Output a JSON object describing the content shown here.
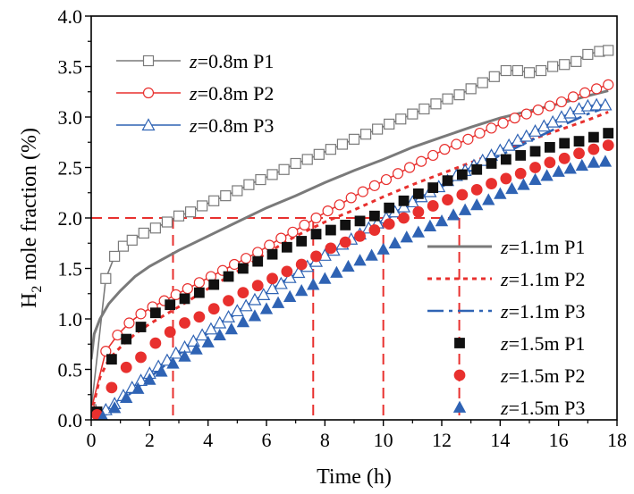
{
  "chart_data": {
    "type": "line",
    "title": "",
    "xlabel": "Time (h)",
    "ylabel_parts": [
      "H",
      "2",
      " mole fraction (%)"
    ],
    "xlim": [
      0,
      18
    ],
    "ylim": [
      0,
      4.0
    ],
    "xticks": [
      0,
      2,
      4,
      6,
      8,
      10,
      12,
      14,
      16,
      18
    ],
    "yticks": [
      0.0,
      0.5,
      1.0,
      1.5,
      2.0,
      2.5,
      3.0,
      3.5,
      4.0
    ],
    "xtick_labels": [
      "0",
      "2",
      "4",
      "6",
      "8",
      "10",
      "12",
      "14",
      "16",
      "18"
    ],
    "ytick_labels": [
      "0.0",
      "0.5",
      "1.0",
      "1.5",
      "2.0",
      "2.5",
      "3.0",
      "3.5",
      "4.0"
    ],
    "reference_lines": {
      "horizontal_y": 2.0,
      "vertical_x": [
        2.8,
        7.6,
        10.0,
        12.6
      ],
      "color": "#e8302e"
    },
    "series": [
      {
        "name": "z=0.8m P1",
        "legend_var": "z",
        "legend_rest": "=0.8m P1",
        "color": "#7a7a7a",
        "style": "line+open-square",
        "x": [
          0,
          0.5,
          0.8,
          1.1,
          1.4,
          1.8,
          2.2,
          2.6,
          3.0,
          3.4,
          3.8,
          4.2,
          4.6,
          5.0,
          5.4,
          5.8,
          6.2,
          6.6,
          7.0,
          7.4,
          7.8,
          8.2,
          8.6,
          9.0,
          9.4,
          9.8,
          10.2,
          10.6,
          11.0,
          11.4,
          11.8,
          12.2,
          12.6,
          13.0,
          13.4,
          13.8,
          14.2,
          14.6,
          15.0,
          15.4,
          15.8,
          16.2,
          16.6,
          17.0,
          17.4,
          17.7
        ],
        "y": [
          0.1,
          1.4,
          1.62,
          1.72,
          1.78,
          1.85,
          1.9,
          1.96,
          2.02,
          2.06,
          2.12,
          2.17,
          2.22,
          2.27,
          2.33,
          2.38,
          2.43,
          2.48,
          2.54,
          2.58,
          2.63,
          2.68,
          2.73,
          2.78,
          2.83,
          2.88,
          2.93,
          2.98,
          3.03,
          3.08,
          3.13,
          3.18,
          3.22,
          3.28,
          3.34,
          3.4,
          3.46,
          3.46,
          3.44,
          3.46,
          3.5,
          3.52,
          3.55,
          3.62,
          3.65,
          3.66
        ]
      },
      {
        "name": "z=0.8m P2",
        "legend_var": "z",
        "legend_rest": "=0.8m P2",
        "color": "#e8302e",
        "style": "line+open-circle",
        "x": [
          0,
          0.5,
          0.9,
          1.3,
          1.7,
          2.1,
          2.5,
          2.9,
          3.3,
          3.7,
          4.1,
          4.5,
          4.9,
          5.3,
          5.7,
          6.1,
          6.5,
          6.9,
          7.3,
          7.7,
          8.1,
          8.5,
          8.9,
          9.3,
          9.7,
          10.1,
          10.5,
          10.9,
          11.3,
          11.7,
          12.1,
          12.5,
          12.9,
          13.3,
          13.7,
          14.1,
          14.5,
          14.9,
          15.3,
          15.7,
          16.1,
          16.5,
          16.9,
          17.3,
          17.7
        ],
        "y": [
          0.1,
          0.68,
          0.84,
          0.96,
          1.05,
          1.12,
          1.18,
          1.24,
          1.3,
          1.36,
          1.42,
          1.48,
          1.54,
          1.6,
          1.66,
          1.73,
          1.8,
          1.86,
          1.93,
          2.0,
          2.07,
          2.13,
          2.2,
          2.26,
          2.32,
          2.38,
          2.44,
          2.5,
          2.56,
          2.62,
          2.68,
          2.73,
          2.78,
          2.84,
          2.89,
          2.94,
          2.99,
          3.03,
          3.07,
          3.11,
          3.15,
          3.2,
          3.24,
          3.28,
          3.32
        ]
      },
      {
        "name": "z=0.8m P3",
        "legend_var": "z",
        "legend_rest": "=0.8m P3",
        "color": "#2f63b4",
        "style": "line+open-triangle",
        "x": [
          0.5,
          0.8,
          1.1,
          1.4,
          1.7,
          2.0,
          2.3,
          2.6,
          2.9,
          3.2,
          3.5,
          3.8,
          4.1,
          4.4,
          4.7,
          5.0,
          5.3,
          5.6,
          5.9,
          6.2,
          6.5,
          6.8,
          7.1,
          7.4,
          7.7,
          8.0,
          8.3,
          8.6,
          8.9,
          9.2,
          9.5,
          9.8,
          10.1,
          10.4,
          10.7,
          11.0,
          11.3,
          11.6,
          11.9,
          12.2,
          12.5,
          12.8,
          13.1,
          13.4,
          13.7,
          14.0,
          14.3,
          14.6,
          14.9,
          15.2,
          15.5,
          15.8,
          16.1,
          16.4,
          16.7,
          17.0,
          17.3,
          17.6
        ],
        "y": [
          0.1,
          0.16,
          0.24,
          0.32,
          0.39,
          0.46,
          0.53,
          0.59,
          0.66,
          0.72,
          0.78,
          0.84,
          0.9,
          0.96,
          1.02,
          1.08,
          1.13,
          1.19,
          1.24,
          1.3,
          1.35,
          1.41,
          1.46,
          1.52,
          1.57,
          1.63,
          1.68,
          1.74,
          1.79,
          1.84,
          1.9,
          1.95,
          2.0,
          2.06,
          2.11,
          2.16,
          2.21,
          2.26,
          2.31,
          2.37,
          2.42,
          2.47,
          2.52,
          2.57,
          2.62,
          2.67,
          2.72,
          2.77,
          2.81,
          2.86,
          2.91,
          2.95,
          3.0,
          3.04,
          3.08,
          3.11,
          3.12,
          3.12
        ]
      },
      {
        "name": "z=1.1m P1",
        "legend_var": "z",
        "legend_rest": "=1.1m P1",
        "color": "#7a7a7a",
        "style": "solid",
        "x": [
          0,
          0.1,
          0.3,
          0.6,
          1.0,
          1.5,
          2.0,
          3.0,
          4.0,
          5.0,
          6.0,
          7.0,
          8.0,
          9.0,
          10.0,
          11.0,
          12.0,
          13.0,
          14.0,
          15.0,
          16.0,
          17.0,
          17.7
        ],
        "y": [
          0.6,
          0.85,
          1.0,
          1.15,
          1.28,
          1.42,
          1.52,
          1.68,
          1.82,
          1.96,
          2.1,
          2.22,
          2.35,
          2.47,
          2.58,
          2.7,
          2.8,
          2.9,
          2.99,
          3.06,
          3.13,
          3.21,
          3.26
        ]
      },
      {
        "name": "z=1.1m P2",
        "legend_var": "z",
        "legend_rest": "=1.1m P2",
        "color": "#e8302e",
        "style": "dotted",
        "x": [
          0,
          0.3,
          0.6,
          1.0,
          1.5,
          2.0,
          3.0,
          4.0,
          5.0,
          6.0,
          7.0,
          8.0,
          9.0,
          10.0,
          11.0,
          12.0,
          13.0,
          14.0,
          15.0,
          16.0,
          17.0,
          17.7
        ],
        "y": [
          0.05,
          0.42,
          0.6,
          0.72,
          0.85,
          0.95,
          1.12,
          1.3,
          1.47,
          1.65,
          1.82,
          1.96,
          2.08,
          2.21,
          2.33,
          2.44,
          2.55,
          2.66,
          2.77,
          2.87,
          2.97,
          3.05
        ]
      },
      {
        "name": "z=1.1m P3",
        "legend_var": "z",
        "legend_rest": "=1.1m P3",
        "color": "#2f63b4",
        "style": "dashdot",
        "x": [
          0.5,
          1.0,
          2.0,
          3.0,
          4.0,
          5.0,
          6.0,
          7.0,
          8.0,
          9.0,
          10.0,
          11.0,
          12.0,
          13.0,
          14.0,
          15.0,
          16.0,
          17.0,
          17.7
        ],
        "y": [
          0.05,
          0.18,
          0.42,
          0.65,
          0.86,
          1.06,
          1.26,
          1.45,
          1.62,
          1.79,
          1.97,
          2.14,
          2.31,
          2.47,
          2.62,
          2.76,
          2.9,
          3.03,
          3.1
        ]
      },
      {
        "name": "z=1.5m P1",
        "legend_var": "z",
        "legend_rest": "=1.5m P1",
        "color": "#111111",
        "style": "filled-square",
        "x": [
          0.2,
          0.7,
          1.2,
          1.7,
          2.2,
          2.7,
          3.2,
          3.7,
          4.2,
          4.7,
          5.2,
          5.7,
          6.2,
          6.7,
          7.2,
          7.7,
          8.2,
          8.7,
          9.2,
          9.7,
          10.2,
          10.7,
          11.2,
          11.7,
          12.2,
          12.7,
          13.2,
          13.7,
          14.2,
          14.7,
          15.2,
          15.7,
          16.2,
          16.7,
          17.2,
          17.7
        ],
        "y": [
          0.08,
          0.6,
          0.8,
          0.92,
          1.06,
          1.14,
          1.2,
          1.26,
          1.34,
          1.42,
          1.5,
          1.57,
          1.64,
          1.71,
          1.77,
          1.84,
          1.88,
          1.93,
          1.97,
          2.02,
          2.1,
          2.17,
          2.24,
          2.3,
          2.37,
          2.43,
          2.48,
          2.54,
          2.58,
          2.62,
          2.66,
          2.7,
          2.74,
          2.76,
          2.8,
          2.84
        ]
      },
      {
        "name": "z=1.5m P2",
        "legend_var": "z",
        "legend_rest": "=1.5m P2",
        "color": "#e8302e",
        "style": "filled-circle",
        "x": [
          0.2,
          0.7,
          1.2,
          1.7,
          2.2,
          2.7,
          3.2,
          3.7,
          4.2,
          4.7,
          5.2,
          5.7,
          6.2,
          6.7,
          7.2,
          7.7,
          8.2,
          8.7,
          9.2,
          9.7,
          10.2,
          10.7,
          11.2,
          11.7,
          12.2,
          12.7,
          13.2,
          13.7,
          14.2,
          14.7,
          15.2,
          15.7,
          16.2,
          16.7,
          17.2,
          17.7
        ],
        "y": [
          0.05,
          0.32,
          0.52,
          0.62,
          0.76,
          0.87,
          0.96,
          1.02,
          1.1,
          1.18,
          1.26,
          1.33,
          1.4,
          1.47,
          1.54,
          1.62,
          1.7,
          1.76,
          1.82,
          1.88,
          1.94,
          2.0,
          2.06,
          2.12,
          2.18,
          2.23,
          2.28,
          2.34,
          2.39,
          2.44,
          2.5,
          2.55,
          2.59,
          2.64,
          2.68,
          2.72
        ]
      },
      {
        "name": "z=1.5m P3",
        "legend_var": "z",
        "legend_rest": "=1.5m P3",
        "color": "#2f63b4",
        "style": "filled-triangle",
        "x": [
          0.4,
          0.8,
          1.2,
          1.6,
          2.0,
          2.4,
          2.8,
          3.2,
          3.6,
          4.0,
          4.4,
          4.8,
          5.2,
          5.6,
          6.0,
          6.4,
          6.8,
          7.2,
          7.6,
          8.0,
          8.4,
          8.8,
          9.2,
          9.6,
          10.0,
          10.4,
          10.8,
          11.2,
          11.6,
          12.0,
          12.4,
          12.8,
          13.2,
          13.6,
          14.0,
          14.4,
          14.8,
          15.2,
          15.6,
          16.0,
          16.4,
          16.8,
          17.2,
          17.6
        ],
        "y": [
          0.03,
          0.12,
          0.22,
          0.31,
          0.4,
          0.48,
          0.56,
          0.63,
          0.7,
          0.77,
          0.84,
          0.9,
          0.97,
          1.03,
          1.1,
          1.16,
          1.22,
          1.28,
          1.34,
          1.4,
          1.46,
          1.52,
          1.58,
          1.63,
          1.69,
          1.75,
          1.81,
          1.86,
          1.92,
          1.97,
          2.03,
          2.08,
          2.13,
          2.18,
          2.24,
          2.29,
          2.33,
          2.38,
          2.42,
          2.46,
          2.49,
          2.52,
          2.55,
          2.56
        ]
      }
    ]
  }
}
